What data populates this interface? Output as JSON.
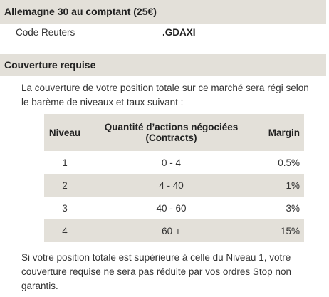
{
  "header": {
    "title": "Allemagne 30 au comptant (25€)"
  },
  "reuters": {
    "label": "Code Reuters",
    "value": ".GDAXI"
  },
  "section": {
    "title": "Couverture requise",
    "intro": "La couverture de votre position totale sur ce marché sera régi selon le barème de niveaux et taux suivant :",
    "footer": "Si votre position totale est supérieure à celle du Niveau 1, votre couverture requise ne sera pas réduite par vos ordres Stop non garantis."
  },
  "table": {
    "columns": [
      "Niveau",
      "Quantité d’actions négociées (Contracts)",
      "Margin"
    ],
    "rows": [
      [
        "1",
        "0 - 4",
        "0.5%"
      ],
      [
        "2",
        "4 - 40",
        "1%"
      ],
      [
        "3",
        "40 - 60",
        "3%"
      ],
      [
        "4",
        "60 +",
        "15%"
      ]
    ]
  }
}
